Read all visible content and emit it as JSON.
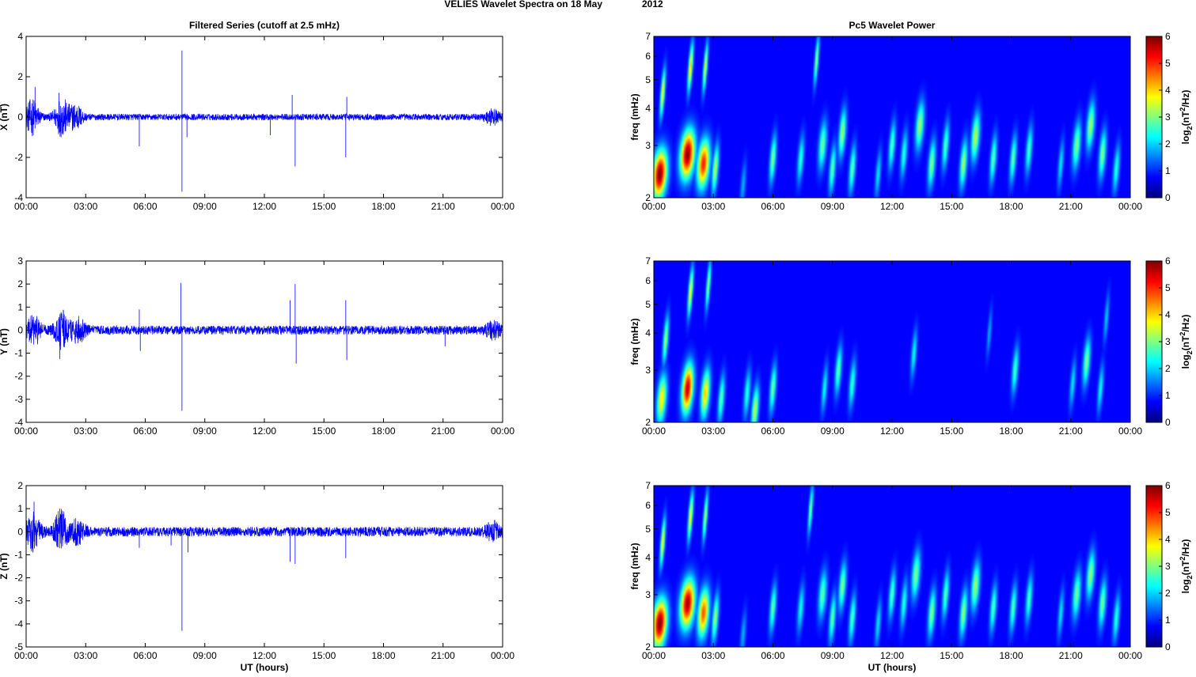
{
  "figure": {
    "title_left": "VELIES Wavelet Spectra on 18 May",
    "title_right": "2012"
  },
  "colors": {
    "series": "#0000ff",
    "colormap": "jet",
    "axes": "#000000",
    "background": "#ffffff"
  },
  "chart_data": [
    {
      "type": "line",
      "panel": "time-series-x",
      "title": "Filtered Series (cutoff at 2.5 mHz)",
      "xlabel": "",
      "ylabel": "X (nT)",
      "xlim": [
        0,
        24
      ],
      "ylim": [
        -4,
        4
      ],
      "xticks": [
        "00:00",
        "03:00",
        "06:00",
        "09:00",
        "12:00",
        "15:00",
        "18:00",
        "21:00",
        "00:00"
      ],
      "yticks": [
        -4,
        -2,
        0,
        2,
        4
      ],
      "grid": false,
      "base_amplitude": 0.1,
      "bursts": [
        {
          "t": 0.3,
          "a": 0.5
        },
        {
          "t": 1.8,
          "a": 0.55
        },
        {
          "t": 2.5,
          "a": 0.35
        },
        {
          "t": 23.5,
          "a": 0.2
        }
      ],
      "spikes": [
        {
          "t": 0.45,
          "y": 1.5
        },
        {
          "t": 1.65,
          "y": 1.2
        },
        {
          "t": 5.7,
          "y": -1.45
        },
        {
          "t": 7.85,
          "y": 3.3
        },
        {
          "t": 7.85,
          "y": -3.7
        },
        {
          "t": 8.1,
          "y": -1.0
        },
        {
          "t": 12.3,
          "y": -0.9
        },
        {
          "t": 13.4,
          "y": 1.1
        },
        {
          "t": 13.55,
          "y": -2.45
        },
        {
          "t": 16.1,
          "y": -2.0
        },
        {
          "t": 16.15,
          "y": 1.0
        }
      ]
    },
    {
      "type": "line",
      "panel": "time-series-y",
      "title": "",
      "xlabel": "",
      "ylabel": "Y (nT)",
      "xlim": [
        0,
        24
      ],
      "ylim": [
        -4,
        3
      ],
      "xticks": [
        "00:00",
        "03:00",
        "06:00",
        "09:00",
        "12:00",
        "15:00",
        "18:00",
        "21:00",
        "00:00"
      ],
      "yticks": [
        -4,
        -3,
        -2,
        -1,
        0,
        1,
        2,
        3
      ],
      "grid": false,
      "base_amplitude": 0.12,
      "bursts": [
        {
          "t": 0.4,
          "a": 0.35
        },
        {
          "t": 1.8,
          "a": 0.45
        },
        {
          "t": 2.6,
          "a": 0.3
        },
        {
          "t": 23.5,
          "a": 0.2
        }
      ],
      "spikes": [
        {
          "t": 1.7,
          "y": -1.25
        },
        {
          "t": 5.7,
          "y": 0.9
        },
        {
          "t": 5.75,
          "y": -0.9
        },
        {
          "t": 7.8,
          "y": 2.05
        },
        {
          "t": 7.85,
          "y": -3.5
        },
        {
          "t": 13.3,
          "y": 1.3
        },
        {
          "t": 13.55,
          "y": 2.0
        },
        {
          "t": 13.6,
          "y": -1.45
        },
        {
          "t": 16.1,
          "y": 1.3
        },
        {
          "t": 16.15,
          "y": -1.3
        },
        {
          "t": 21.1,
          "y": -0.7
        }
      ]
    },
    {
      "type": "line",
      "panel": "time-series-z",
      "title": "",
      "xlabel": "UT (hours)",
      "ylabel": "Z (nT)",
      "xlim": [
        0,
        24
      ],
      "ylim": [
        -5,
        2
      ],
      "xticks": [
        "00:00",
        "03:00",
        "06:00",
        "09:00",
        "12:00",
        "15:00",
        "18:00",
        "21:00",
        "00:00"
      ],
      "yticks": [
        -5,
        -4,
        -3,
        -2,
        -1,
        0,
        1,
        2
      ],
      "grid": false,
      "base_amplitude": 0.13,
      "bursts": [
        {
          "t": 0.35,
          "a": 0.45
        },
        {
          "t": 1.75,
          "a": 0.5
        },
        {
          "t": 2.6,
          "a": 0.3
        },
        {
          "t": 23.5,
          "a": 0.2
        }
      ],
      "spikes": [
        {
          "t": 0.4,
          "y": 1.3
        },
        {
          "t": 1.7,
          "y": 1.0
        },
        {
          "t": 5.7,
          "y": -0.7
        },
        {
          "t": 7.3,
          "y": -0.6
        },
        {
          "t": 7.85,
          "y": -4.3
        },
        {
          "t": 8.15,
          "y": -0.9
        },
        {
          "t": 13.3,
          "y": -1.3
        },
        {
          "t": 13.55,
          "y": -1.4
        },
        {
          "t": 16.1,
          "y": -1.15
        }
      ]
    },
    {
      "type": "heatmap",
      "panel": "wavelet-x",
      "title": "Pc5 Wavelet Power",
      "xlabel": "",
      "ylabel": "freq (mHz)",
      "colorbar_label": "log2(nT2/Hz)",
      "colormap": "jet",
      "clim": [
        0,
        6
      ],
      "xlim": [
        0,
        24
      ],
      "ylim": [
        2,
        7
      ],
      "yscale": "log",
      "xticks": [
        "00:00",
        "03:00",
        "06:00",
        "09:00",
        "12:00",
        "15:00",
        "18:00",
        "21:00",
        "00:00"
      ],
      "yticks": [
        2,
        3,
        4,
        5,
        6,
        7
      ],
      "cticks": [
        0,
        1,
        2,
        3,
        4,
        5,
        6
      ],
      "blobs": [
        [
          0.3,
          2.4,
          6.0,
          0.3
        ],
        [
          0.45,
          4.5,
          3.5,
          0.06
        ],
        [
          1.7,
          2.8,
          6.0,
          0.3
        ],
        [
          1.85,
          5.5,
          3.8,
          0.06
        ],
        [
          2.5,
          2.6,
          5.0,
          0.25
        ],
        [
          2.6,
          5.5,
          3.3,
          0.05
        ],
        [
          3.1,
          2.5,
          3.0,
          0.1
        ],
        [
          4.5,
          2.2,
          1.2,
          0.08
        ],
        [
          6.0,
          2.7,
          2.6,
          0.1
        ],
        [
          7.4,
          2.7,
          2.0,
          0.1
        ],
        [
          8.2,
          5.8,
          2.8,
          0.05
        ],
        [
          8.5,
          3.0,
          2.5,
          0.14
        ],
        [
          9.0,
          2.5,
          2.4,
          0.1
        ],
        [
          9.5,
          3.3,
          2.8,
          0.12
        ],
        [
          10.0,
          2.5,
          2.4,
          0.1
        ],
        [
          11.3,
          2.4,
          1.6,
          0.08
        ],
        [
          12.0,
          3.0,
          2.3,
          0.1
        ],
        [
          12.6,
          2.8,
          2.0,
          0.1
        ],
        [
          13.4,
          3.5,
          2.8,
          0.15
        ],
        [
          14.0,
          2.6,
          2.6,
          0.12
        ],
        [
          14.7,
          3.0,
          2.3,
          0.1
        ],
        [
          15.6,
          2.6,
          2.8,
          0.12
        ],
        [
          16.2,
          3.2,
          3.0,
          0.15
        ],
        [
          17.1,
          2.7,
          2.4,
          0.1
        ],
        [
          18.1,
          2.7,
          2.4,
          0.1
        ],
        [
          18.9,
          2.9,
          2.2,
          0.1
        ],
        [
          20.5,
          2.6,
          1.6,
          0.08
        ],
        [
          21.3,
          3.0,
          2.6,
          0.14
        ],
        [
          22.0,
          3.5,
          2.8,
          0.14
        ],
        [
          22.6,
          2.8,
          2.6,
          0.12
        ],
        [
          23.3,
          2.5,
          2.0,
          0.1
        ]
      ]
    },
    {
      "type": "heatmap",
      "panel": "wavelet-y",
      "title": "",
      "xlabel": "",
      "ylabel": "freq (mHz)",
      "colorbar_label": "log2(nT2/Hz)",
      "colormap": "jet",
      "clim": [
        0,
        6
      ],
      "xlim": [
        0,
        24
      ],
      "ylim": [
        2,
        7
      ],
      "yscale": "log",
      "xticks": [
        "00:00",
        "03:00",
        "06:00",
        "09:00",
        "12:00",
        "15:00",
        "18:00",
        "21:00",
        "00:00"
      ],
      "yticks": [
        2,
        3,
        4,
        5,
        6,
        7
      ],
      "cticks": [
        0,
        1,
        2,
        3,
        4,
        5,
        6
      ],
      "blobs": [
        [
          0.4,
          2.4,
          3.6,
          0.18
        ],
        [
          0.6,
          3.8,
          2.8,
          0.08
        ],
        [
          1.7,
          2.6,
          5.6,
          0.22
        ],
        [
          1.85,
          5.5,
          3.5,
          0.06
        ],
        [
          2.6,
          2.5,
          3.8,
          0.16
        ],
        [
          2.75,
          5.8,
          2.8,
          0.05
        ],
        [
          3.4,
          2.4,
          2.4,
          0.1
        ],
        [
          4.7,
          2.5,
          2.0,
          0.1
        ],
        [
          5.1,
          2.2,
          3.0,
          0.12
        ],
        [
          6.0,
          2.6,
          2.5,
          0.1
        ],
        [
          8.6,
          2.6,
          1.8,
          0.08
        ],
        [
          9.3,
          3.0,
          2.4,
          0.1
        ],
        [
          10.0,
          2.7,
          2.1,
          0.1
        ],
        [
          13.1,
          3.4,
          1.8,
          0.08
        ],
        [
          16.9,
          4.0,
          1.2,
          0.05
        ],
        [
          18.2,
          3.0,
          2.2,
          0.1
        ],
        [
          21.1,
          2.7,
          1.6,
          0.08
        ],
        [
          21.8,
          3.2,
          2.6,
          0.12
        ],
        [
          22.5,
          2.6,
          1.8,
          0.08
        ],
        [
          22.8,
          4.5,
          1.4,
          0.06
        ]
      ]
    },
    {
      "type": "heatmap",
      "panel": "wavelet-z",
      "title": "",
      "xlabel": "UT (hours)",
      "ylabel": "freq (mHz)",
      "colorbar_label": "log2(nT2/Hz)",
      "colormap": "jet",
      "clim": [
        0,
        6
      ],
      "xlim": [
        0,
        24
      ],
      "ylim": [
        2,
        7
      ],
      "yscale": "log",
      "xticks": [
        "00:00",
        "03:00",
        "06:00",
        "09:00",
        "12:00",
        "15:00",
        "18:00",
        "21:00",
        "00:00"
      ],
      "yticks": [
        2,
        3,
        4,
        5,
        6,
        7
      ],
      "cticks": [
        0,
        1,
        2,
        3,
        4,
        5,
        6
      ],
      "blobs": [
        [
          0.3,
          2.4,
          6.0,
          0.3
        ],
        [
          0.45,
          4.5,
          3.5,
          0.06
        ],
        [
          1.7,
          2.8,
          5.8,
          0.3
        ],
        [
          1.85,
          5.5,
          3.5,
          0.06
        ],
        [
          2.5,
          2.6,
          4.6,
          0.22
        ],
        [
          2.6,
          5.5,
          3.0,
          0.05
        ],
        [
          3.1,
          2.5,
          2.8,
          0.1
        ],
        [
          4.5,
          2.2,
          1.2,
          0.08
        ],
        [
          6.0,
          2.7,
          2.4,
          0.1
        ],
        [
          7.4,
          2.7,
          1.8,
          0.1
        ],
        [
          7.9,
          5.8,
          2.6,
          0.05
        ],
        [
          8.5,
          3.0,
          2.4,
          0.14
        ],
        [
          9.0,
          2.5,
          2.4,
          0.1
        ],
        [
          9.5,
          3.2,
          2.6,
          0.12
        ],
        [
          10.0,
          2.5,
          2.3,
          0.1
        ],
        [
          11.3,
          2.4,
          1.6,
          0.08
        ],
        [
          12.0,
          3.0,
          2.3,
          0.1
        ],
        [
          12.6,
          2.8,
          2.0,
          0.1
        ],
        [
          13.2,
          3.5,
          2.6,
          0.15
        ],
        [
          14.0,
          2.6,
          2.6,
          0.12
        ],
        [
          14.7,
          3.0,
          2.3,
          0.1
        ],
        [
          15.6,
          2.6,
          2.7,
          0.12
        ],
        [
          16.2,
          3.2,
          2.8,
          0.15
        ],
        [
          17.1,
          2.7,
          2.3,
          0.1
        ],
        [
          18.1,
          2.7,
          2.3,
          0.1
        ],
        [
          18.9,
          2.9,
          2.2,
          0.1
        ],
        [
          20.5,
          2.6,
          1.6,
          0.08
        ],
        [
          21.3,
          3.0,
          2.5,
          0.14
        ],
        [
          22.0,
          3.5,
          2.7,
          0.14
        ],
        [
          22.6,
          2.8,
          2.5,
          0.12
        ],
        [
          23.3,
          2.5,
          2.0,
          0.1
        ]
      ]
    }
  ]
}
